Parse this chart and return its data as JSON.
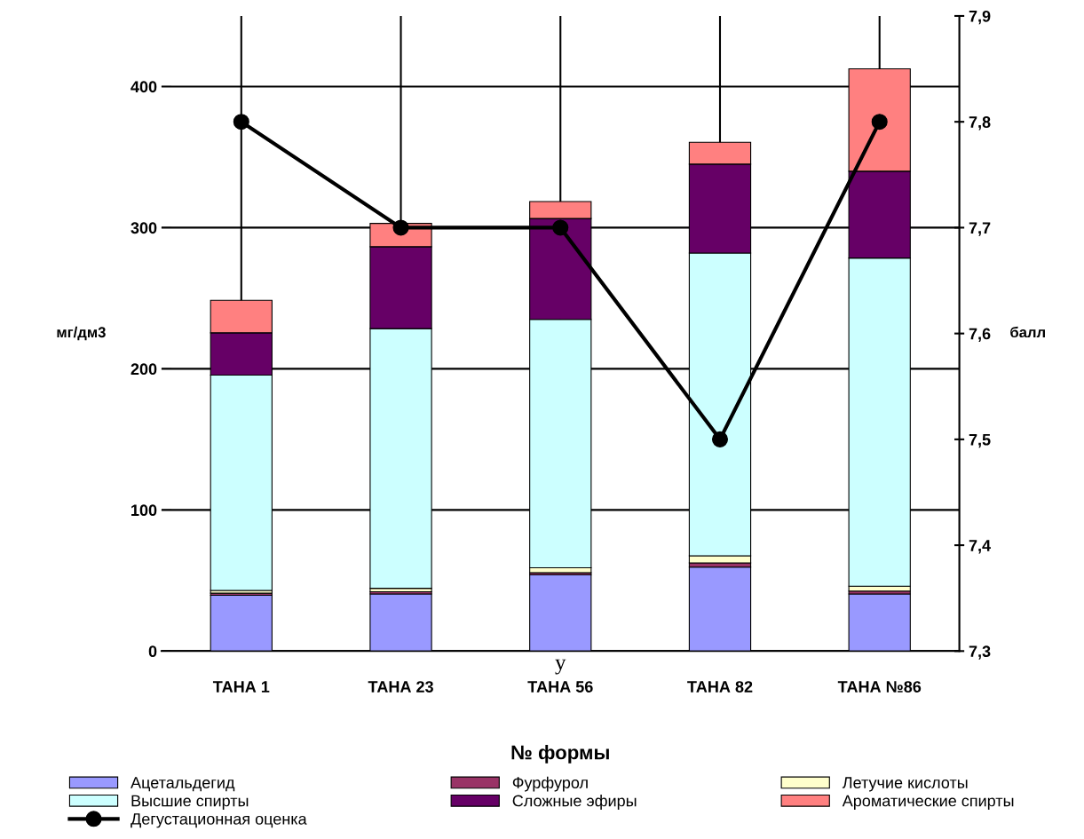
{
  "chart_data": {
    "type": "bar",
    "stacked": true,
    "categories": [
      "ТАНА 1",
      "ТАНА 23",
      "ТАНА 56",
      "ТАНА 82",
      "ТАНА №86"
    ],
    "xlabel": "№ формы",
    "ylabel": "мг/дм3",
    "y2label": "балл",
    "ylim": [
      0,
      450
    ],
    "yticks": [
      0,
      100,
      200,
      300,
      400
    ],
    "y2lim": [
      7.3,
      7.9
    ],
    "y2ticks": [
      {
        "value": 7.3,
        "label": "7,3"
      },
      {
        "value": 7.4,
        "label": "7,4"
      },
      {
        "value": 7.5,
        "label": "7,5"
      },
      {
        "value": 7.6,
        "label": "7,6"
      },
      {
        "value": 7.7,
        "label": "7,7"
      },
      {
        "value": 7.8,
        "label": "7,8"
      },
      {
        "value": 7.9,
        "label": "7,9"
      }
    ],
    "grid": true,
    "legend": "bottom",
    "annotations": [
      "у"
    ],
    "series": [
      {
        "name": "Ацетальдегид",
        "color": "#9999ff",
        "values": [
          39.5,
          40.5,
          54,
          59.5,
          40.5
        ]
      },
      {
        "name": "Фурфурол",
        "color": "#993366",
        "values": [
          1.5,
          1.5,
          1.5,
          3,
          2
        ]
      },
      {
        "name": "Летучие кислоты",
        "color": "#ffffcc",
        "values": [
          2,
          2.5,
          3.5,
          5,
          3.5
        ]
      },
      {
        "name": "Высшие спирты",
        "color": "#ccffff",
        "values": [
          152.5,
          184,
          176,
          214.5,
          232.5
        ]
      },
      {
        "name": "Сложные эфиры",
        "color": "#660066",
        "values": [
          30,
          58,
          71.5,
          63,
          61.5
        ]
      },
      {
        "name": "Ароматические спирты",
        "color": "#ff8080",
        "values": [
          23,
          16.5,
          12,
          15.5,
          72.5
        ]
      },
      {
        "name": "Дегустационная оценка",
        "type": "line",
        "axis": "y2",
        "color": "#000000",
        "marker": "circle",
        "values": [
          7.8,
          7.7,
          7.7,
          7.5,
          7.8
        ]
      }
    ]
  }
}
